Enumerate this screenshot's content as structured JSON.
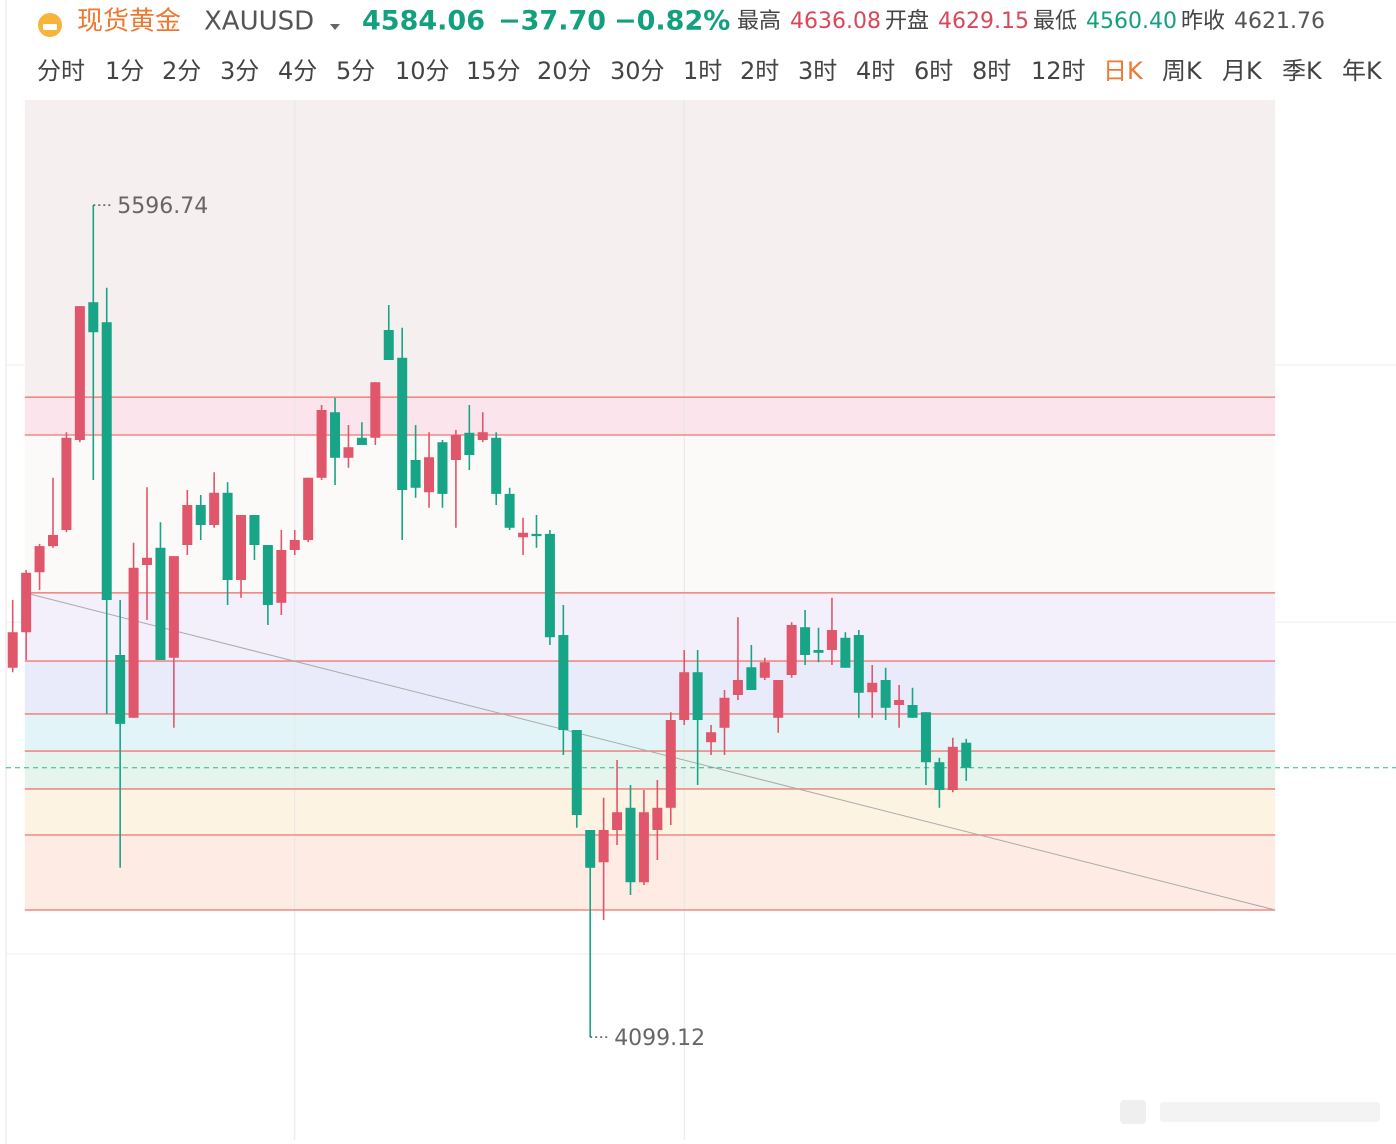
{
  "header": {
    "name": "现货黄金",
    "symbol": "XAUUSD",
    "price": "4584.06",
    "change": "−37.70",
    "change_pct": "−0.82%",
    "stats": [
      {
        "label": "最高",
        "value": "4636.08",
        "color": "#d9475b"
      },
      {
        "label": "开盘",
        "value": "4629.15",
        "color": "#d9475b"
      },
      {
        "label": "最低",
        "value": "4560.40",
        "color": "#13a07f"
      },
      {
        "label": "昨收",
        "value": "4621.76",
        "color": "#555555"
      }
    ]
  },
  "timeframes": {
    "items": [
      "分时",
      "1分",
      "2分",
      "3分",
      "4分",
      "5分",
      "10分",
      "15分",
      "20分",
      "30分",
      "1时",
      "2时",
      "3时",
      "4时",
      "6时",
      "8时",
      "12时",
      "日K",
      "周K",
      "月K",
      "季K",
      "年K"
    ],
    "active": 17
  },
  "chart_data": {
    "type": "candlestick",
    "open": [
      4764,
      4828,
      4936,
      4983,
      5012,
      5174,
      5422,
      5386,
      4787,
      4674,
      4949,
      4980,
      4782,
      4985,
      5057,
      5021,
      5079,
      4922,
      5039,
      4985,
      4881,
      4976,
      4994,
      5106,
      5224,
      5142,
      5178,
      5178,
      5372,
      5322,
      5138,
      5080,
      5170,
      5138,
      5187,
      5174,
      5178,
      5077,
      4999,
      5005,
      5005,
      4823,
      4652,
      4472,
      4414,
      4472,
      4512,
      4378,
      4472,
      4512,
      4670,
      4756,
      4630,
      4656,
      4715,
      4765,
      4746,
      4674,
      4751,
      4837,
      4796,
      4796,
      4818,
      4823,
      4720,
      4742,
      4697,
      4697,
      4684,
      4594,
      4544,
      4629.15
    ],
    "high": [
      4886,
      4940,
      4987,
      5106,
      5188,
      5415,
      5596.74,
      5448,
      4886,
      4989,
      5089,
      5026,
      4965,
      5084,
      5075,
      5116,
      5098,
      5039,
      5039,
      4985,
      5012,
      5012,
      5106,
      5237,
      5250,
      5201,
      5206,
      5278,
      5417,
      5376,
      5201,
      5188,
      5174,
      5192,
      5237,
      5224,
      5188,
      5088,
      5034,
      5039,
      5012,
      4877,
      4652,
      4472,
      4530,
      4598,
      4553,
      4544,
      4562,
      4684,
      4796,
      4796,
      4661,
      4724,
      4855,
      4805,
      4782,
      4742,
      4846,
      4868,
      4836,
      4890,
      4828,
      4832,
      4769,
      4764,
      4733,
      4728,
      4684,
      4602,
      4638,
      4636.08
    ],
    "low": [
      4756,
      4778,
      4904,
      4980,
      5008,
      5170,
      5102,
      4681,
      4404,
      4674,
      4850,
      4778,
      4656,
      4967,
      4994,
      5016,
      4877,
      4890,
      4958,
      4841,
      4859,
      4967,
      4990,
      5102,
      5093,
      5124,
      5165,
      5165,
      5318,
      4994,
      5070,
      5052,
      5052,
      5016,
      5120,
      5170,
      5057,
      5012,
      4967,
      4980,
      4805,
      4607,
      4476,
      4099.12,
      4310,
      4445,
      4355,
      4373,
      4418,
      4481,
      4661,
      4553,
      4607,
      4607,
      4706,
      4724,
      4742,
      4647,
      4746,
      4769,
      4774,
      4769,
      4764,
      4674,
      4674,
      4670,
      4656,
      4674,
      4553,
      4512,
      4540,
      4560.4
    ],
    "close": [
      4828,
      4935,
      4983,
      5003,
      5178,
      5415,
      5368,
      4886,
      4663,
      4944,
      4962,
      4778,
      4965,
      5057,
      5021,
      5079,
      4922,
      5039,
      4985,
      4877,
      4976,
      4994,
      5106,
      5228,
      5142,
      5161,
      5165,
      5278,
      5318,
      5084,
      5088,
      5143,
      5077,
      5183,
      5147,
      5188,
      5077,
      5016,
      5007,
      5001,
      4819,
      4652,
      4499,
      4404,
      4472,
      4504,
      4378,
      4504,
      4512,
      4670,
      4756,
      4670,
      4648,
      4710,
      4742,
      4724,
      4774,
      4742,
      4841,
      4787,
      4791,
      4832,
      4764,
      4719,
      4737,
      4692,
      4706,
      4674,
      4594,
      4544,
      4621.76,
      4584.06
    ],
    "up_color": "#e0566a",
    "down_color": "#17a487",
    "xlim": [
      -0.5,
      103
    ],
    "ylim": [
      3914,
      5786
    ],
    "levels": [
      5251,
      5183,
      4899,
      4776,
      4681,
      4614,
      4546,
      4463,
      4328
    ],
    "level_color": "#f08a84",
    "zone_colors": [
      "#f6efef",
      "#fce4ec",
      "#fcf9f9",
      "#f3effb",
      "#e9ebfb",
      "#e2f4f8",
      "#e5f5ee",
      "#fdf3e2",
      "#fdebe4"
    ],
    "zone_x": [
      0.9,
      94
    ],
    "trendline": {
      "x": [
        0.9,
        94
      ],
      "y": [
        4899,
        4328
      ],
      "color": "#aaaaaa"
    },
    "grid_x": [
      21,
      50
    ],
    "grid_y": [
      5309,
      4846,
      4249
    ],
    "last_price_color": "#2bb594",
    "annotations": [
      {
        "index": 6,
        "value": 5596.74
      },
      {
        "index": 43,
        "value": 4099.12
      }
    ]
  }
}
